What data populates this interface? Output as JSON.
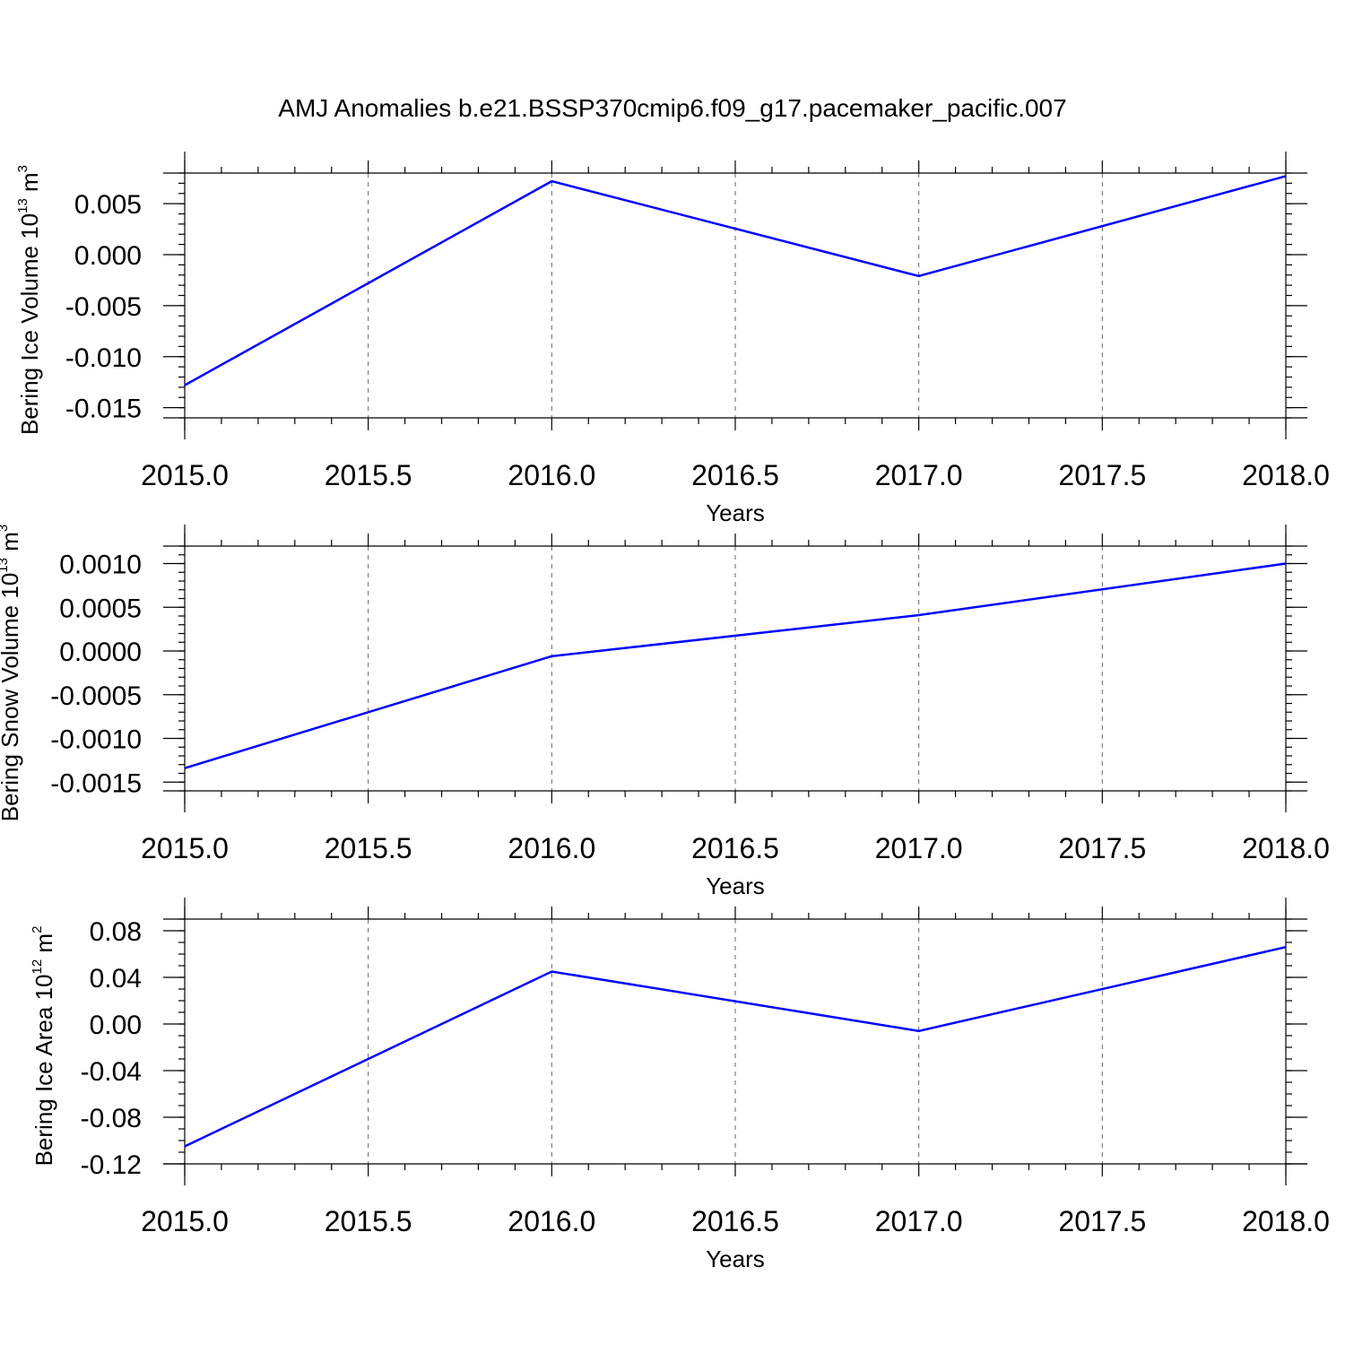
{
  "figure": {
    "title": "AMJ Anomalies b.e21.BSSP370cmip6.f09_g17.pacemaker_pacific.007"
  },
  "chart_data": [
    {
      "type": "line",
      "title": "",
      "xlabel": "Years",
      "ylabel": {
        "text": "Bering Ice Volume 10",
        "exp": "13",
        "unit": " m",
        "unit_exp": "3"
      },
      "x": [
        2015,
        2016,
        2017,
        2018
      ],
      "xlim": [
        2015,
        2018
      ],
      "xticks": [
        "2015.0",
        "2015.5",
        "2016.0",
        "2016.5",
        "2017.0",
        "2017.5",
        "2018.0"
      ],
      "xtick_values": [
        2015,
        2015.5,
        2016,
        2016.5,
        2017,
        2017.5,
        2018
      ],
      "ylim": [
        -0.016,
        0.008
      ],
      "yticks": [
        "-0.015",
        "-0.010",
        "-0.005",
        "0.000",
        "0.005"
      ],
      "ytick_values": [
        -0.015,
        -0.01,
        -0.005,
        0.0,
        0.005
      ],
      "y_minor_step": 0.001,
      "grid": "vertical dashed at x ticks",
      "series": [
        {
          "values": [
            -0.0128,
            0.0072,
            -0.0021,
            0.0077
          ],
          "color": "#0000ff"
        }
      ]
    },
    {
      "type": "line",
      "title": "",
      "xlabel": "Years",
      "ylabel": {
        "text": "Bering Snow Volume 10",
        "exp": "13",
        "unit": " m",
        "unit_exp": "3"
      },
      "x": [
        2015,
        2016,
        2017,
        2018
      ],
      "xlim": [
        2015,
        2018
      ],
      "xticks": [
        "2015.0",
        "2015.5",
        "2016.0",
        "2016.5",
        "2017.0",
        "2017.5",
        "2018.0"
      ],
      "xtick_values": [
        2015,
        2015.5,
        2016,
        2016.5,
        2017,
        2017.5,
        2018
      ],
      "ylim": [
        -0.0016,
        0.0012
      ],
      "yticks": [
        "-0.0015",
        "-0.0010",
        "-0.0005",
        "0.0000",
        "0.0005",
        "0.0010"
      ],
      "ytick_values": [
        -0.0015,
        -0.001,
        -0.0005,
        0.0,
        0.0005,
        0.001
      ],
      "y_minor_step": 0.0001,
      "grid": "vertical dashed at x ticks",
      "series": [
        {
          "values": [
            -0.00134,
            -6e-05,
            0.00041,
            0.001
          ],
          "color": "#0000ff"
        }
      ]
    },
    {
      "type": "line",
      "title": "",
      "xlabel": "Years",
      "ylabel": {
        "text": "Bering Ice Area 10",
        "exp": "12",
        "unit": " m",
        "unit_exp": "2"
      },
      "x": [
        2015,
        2016,
        2017,
        2018
      ],
      "xlim": [
        2015,
        2018
      ],
      "xticks": [
        "2015.0",
        "2015.5",
        "2016.0",
        "2016.5",
        "2017.0",
        "2017.5",
        "2018.0"
      ],
      "xtick_values": [
        2015,
        2015.5,
        2016,
        2016.5,
        2017,
        2017.5,
        2018
      ],
      "ylim": [
        -0.12,
        0.09
      ],
      "yticks": [
        "-0.12",
        "-0.08",
        "-0.04",
        "0.00",
        "0.04",
        "0.08"
      ],
      "ytick_values": [
        -0.12,
        -0.08,
        -0.04,
        0.0,
        0.04,
        0.08
      ],
      "y_minor_step": 0.01,
      "grid": "vertical dashed at x ticks",
      "series": [
        {
          "values": [
            -0.105,
            0.045,
            -0.006,
            0.066
          ],
          "color": "#0000ff"
        }
      ]
    }
  ]
}
